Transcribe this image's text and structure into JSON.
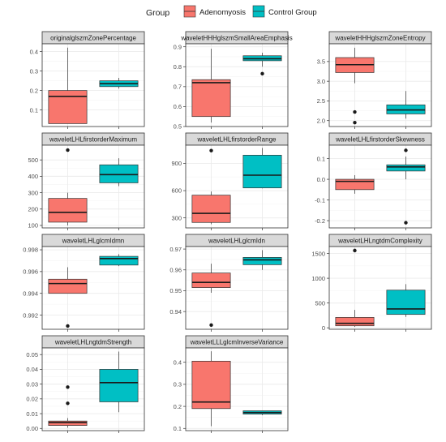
{
  "colors": {
    "adenomyosis": "#F8766D",
    "control": "#00BFC4",
    "strip_bg": "#D9D9D9",
    "grid_major": "#EBEBEB",
    "grid_minor": "#F5F5F5",
    "border": "#333333"
  },
  "chart_data": {
    "type": "boxplot",
    "facet_layout": {
      "columns": 3,
      "rows": 4
    },
    "legend": {
      "title": "Group",
      "placement": "top",
      "entries": [
        {
          "name": "Adenomyosis",
          "color_key": "adenomyosis"
        },
        {
          "name": "Control Group",
          "color_key": "control"
        }
      ]
    },
    "grid": true,
    "categories": [
      "Adenomyosis",
      "Control Group"
    ],
    "panels": [
      {
        "title": "originalglszmZonePercentage",
        "ylim": [
          0.015,
          0.44
        ],
        "yticks": [
          0.1,
          0.2,
          0.3,
          0.4
        ],
        "tick_labels": [
          "0.1",
          "0.2",
          "0.3",
          "0.4"
        ],
        "boxes": [
          {
            "group": "Adenomyosis",
            "whisker_low": 0.03,
            "q1": 0.03,
            "median": 0.17,
            "q3": 0.2,
            "whisker_high": 0.42,
            "outliers": []
          },
          {
            "group": "Control Group",
            "whisker_low": 0.21,
            "q1": 0.22,
            "median": 0.235,
            "q3": 0.25,
            "whisker_high": 0.265,
            "outliers": []
          }
        ]
      },
      {
        "title": "waveletHHHglszmSmallAreaEmphasis",
        "ylim": [
          0.5,
          0.915
        ],
        "yticks": [
          0.5,
          0.6,
          0.7,
          0.8,
          0.9
        ],
        "tick_labels": [
          "0.5",
          "0.6",
          "0.7",
          "0.8",
          "0.9"
        ],
        "boxes": [
          {
            "group": "Adenomyosis",
            "whisker_low": 0.52,
            "q1": 0.55,
            "median": 0.72,
            "q3": 0.735,
            "whisker_high": 0.89,
            "outliers": []
          },
          {
            "group": "Control Group",
            "whisker_low": 0.8,
            "q1": 0.83,
            "median": 0.84,
            "q3": 0.855,
            "whisker_high": 0.87,
            "outliers": [
              0.765
            ]
          }
        ]
      },
      {
        "title": "waveletHHHglszmZoneEntropy",
        "ylim": [
          1.85,
          3.95
        ],
        "yticks": [
          2.0,
          2.5,
          3.0,
          3.5
        ],
        "tick_labels": [
          "2.0",
          "2.5",
          "3.0",
          "3.5"
        ],
        "boxes": [
          {
            "group": "Adenomyosis",
            "whisker_low": 2.95,
            "q1": 3.22,
            "median": 3.42,
            "q3": 3.6,
            "whisker_high": 3.85,
            "outliers": [
              2.22,
              1.95
            ]
          },
          {
            "group": "Control Group",
            "whisker_low": 2.05,
            "q1": 2.17,
            "median": 2.27,
            "q3": 2.4,
            "whisker_high": 2.75,
            "outliers": []
          }
        ]
      },
      {
        "title": "waveletLHLfirstorderMaximum",
        "ylim": [
          85,
          590
        ],
        "yticks": [
          100,
          200,
          300,
          400,
          500
        ],
        "tick_labels": [
          "100",
          "200",
          "300",
          "400",
          "500"
        ],
        "boxes": [
          {
            "group": "Adenomyosis",
            "whisker_low": 100,
            "q1": 120,
            "median": 180,
            "q3": 265,
            "whisker_high": 300,
            "outliers": [
              560
            ]
          },
          {
            "group": "Control Group",
            "whisker_low": 340,
            "q1": 360,
            "median": 410,
            "q3": 470,
            "whisker_high": 510,
            "outliers": []
          }
        ]
      },
      {
        "title": "waveletLHLfirstorderRange",
        "ylim": [
          190,
          1100
        ],
        "yticks": [
          300,
          600,
          900
        ],
        "tick_labels": [
          "300",
          "600",
          "900"
        ],
        "boxes": [
          {
            "group": "Adenomyosis",
            "whisker_low": 230,
            "q1": 250,
            "median": 350,
            "q3": 550,
            "whisker_high": 590,
            "outliers": [
              1040
            ]
          },
          {
            "group": "Control Group",
            "whisker_low": 625,
            "q1": 630,
            "median": 770,
            "q3": 990,
            "whisker_high": 1070,
            "outliers": []
          }
        ]
      },
      {
        "title": "waveletLHLfirstorderSkewness",
        "ylim": [
          -0.235,
          0.165
        ],
        "yticks": [
          -0.2,
          -0.1,
          0.0,
          0.1
        ],
        "tick_labels": [
          "-0.2",
          "-0.1",
          "0.0",
          "0.1"
        ],
        "boxes": [
          {
            "group": "Adenomyosis",
            "whisker_low": -0.07,
            "q1": -0.05,
            "median": -0.01,
            "q3": 0.0,
            "whisker_high": 0.02,
            "outliers": []
          },
          {
            "group": "Control Group",
            "whisker_low": 0.0,
            "q1": 0.04,
            "median": 0.06,
            "q3": 0.07,
            "whisker_high": 0.11,
            "outliers": [
              0.14,
              -0.21
            ]
          }
        ]
      },
      {
        "title": "waveletLHLglcmIdmn",
        "ylim": [
          0.9907,
          0.9983
        ],
        "yticks": [
          0.992,
          0.994,
          0.996,
          0.998
        ],
        "tick_labels": [
          "0.992",
          "0.994",
          "0.996",
          "0.998"
        ],
        "boxes": [
          {
            "group": "Adenomyosis",
            "whisker_low": 0.994,
            "q1": 0.994,
            "median": 0.9949,
            "q3": 0.9953,
            "whisker_high": 0.9964,
            "outliers": [
              0.991
            ]
          },
          {
            "group": "Control Group",
            "whisker_low": 0.9965,
            "q1": 0.9966,
            "median": 0.9972,
            "q3": 0.9974,
            "whisker_high": 0.9976,
            "outliers": []
          }
        ]
      },
      {
        "title": "waveletLHLglcmIdn",
        "ylim": [
          0.9315,
          0.9712
        ],
        "yticks": [
          0.94,
          0.95,
          0.96,
          0.97
        ],
        "tick_labels": [
          "0.94",
          "0.95",
          "0.96",
          "0.97"
        ],
        "boxes": [
          {
            "group": "Adenomyosis",
            "whisker_low": 0.949,
            "q1": 0.9515,
            "median": 0.954,
            "q3": 0.9585,
            "whisker_high": 0.963,
            "outliers": [
              0.9335
            ]
          },
          {
            "group": "Control Group",
            "whisker_low": 0.96,
            "q1": 0.9625,
            "median": 0.9648,
            "q3": 0.966,
            "whisker_high": 0.9695,
            "outliers": []
          }
        ]
      },
      {
        "title": "waveletLHLngtdmComplexity",
        "ylim": [
          -30,
          1640
        ],
        "yticks": [
          0,
          500,
          1000,
          1500
        ],
        "tick_labels": [
          "0",
          "500",
          "1000",
          "1500"
        ],
        "boxes": [
          {
            "group": "Adenomyosis",
            "whisker_low": 20,
            "q1": 40,
            "median": 90,
            "q3": 210,
            "whisker_high": 360,
            "outliers": [
              1560
            ]
          },
          {
            "group": "Control Group",
            "whisker_low": 220,
            "q1": 270,
            "median": 380,
            "q3": 760,
            "whisker_high": 880,
            "outliers": []
          }
        ]
      },
      {
        "title": "waveletLHLngtdmStrength",
        "ylim": [
          -0.0015,
          0.0545
        ],
        "yticks": [
          0.0,
          0.01,
          0.02,
          0.03,
          0.04,
          0.05
        ],
        "tick_labels": [
          "0.00",
          "0.01",
          "0.02",
          "0.03",
          "0.04",
          "0.05"
        ],
        "boxes": [
          {
            "group": "Adenomyosis",
            "whisker_low": 0.0005,
            "q1": 0.002,
            "median": 0.004,
            "q3": 0.005,
            "whisker_high": 0.007,
            "outliers": [
              0.028,
              0.017
            ]
          },
          {
            "group": "Control Group",
            "whisker_low": 0.011,
            "q1": 0.018,
            "median": 0.031,
            "q3": 0.04,
            "whisker_high": 0.052,
            "outliers": []
          }
        ]
      },
      {
        "title": "waveletLLLglcmInverseVariance",
        "ylim": [
          0.09,
          0.465
        ],
        "yticks": [
          0.1,
          0.2,
          0.3,
          0.4
        ],
        "tick_labels": [
          "0.1",
          "0.2",
          "0.3",
          "0.4"
        ],
        "boxes": [
          {
            "group": "Adenomyosis",
            "whisker_low": 0.11,
            "q1": 0.19,
            "median": 0.22,
            "q3": 0.405,
            "whisker_high": 0.45,
            "outliers": []
          },
          {
            "group": "Control Group",
            "whisker_low": 0.16,
            "q1": 0.165,
            "median": 0.172,
            "q3": 0.18,
            "whisker_high": 0.18,
            "outliers": []
          }
        ]
      }
    ]
  }
}
